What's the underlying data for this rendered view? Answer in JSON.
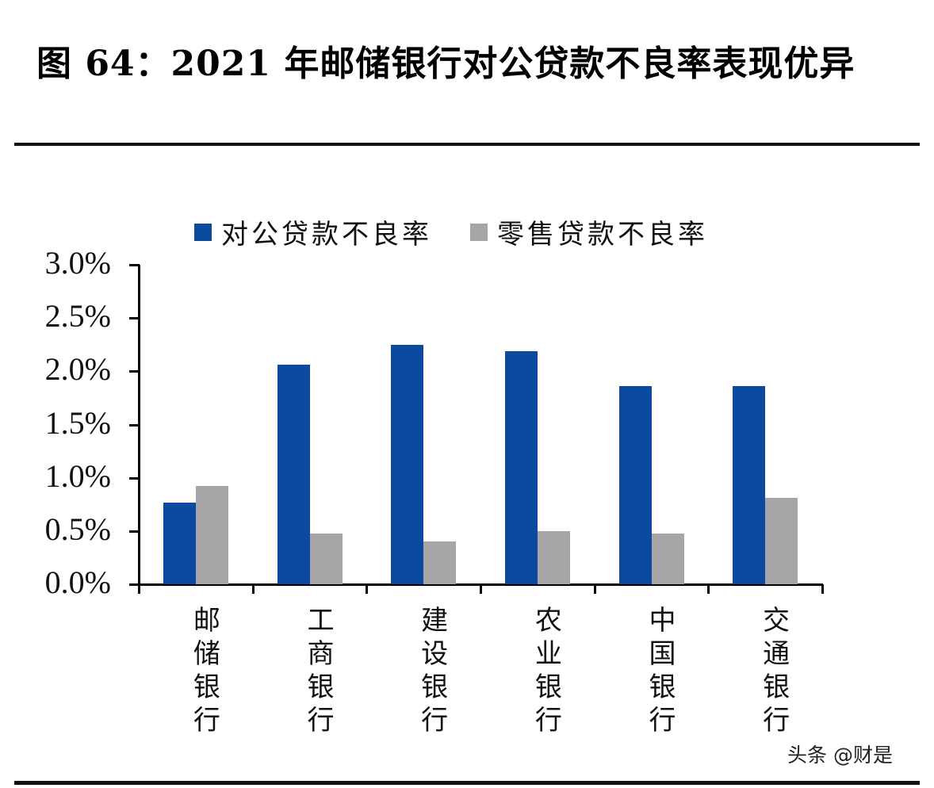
{
  "title": "图 64：2021 年邮储银行对公贷款不良率表现优异",
  "legend": [
    {
      "label": "对公贷款不良率",
      "color": "#0b4a9e"
    },
    {
      "label": "零售贷款不良率",
      "color": "#a6a6a8"
    }
  ],
  "watermark": "头条 @财是",
  "chart_data": {
    "type": "bar",
    "title": "2021 年邮储银行对公贷款不良率表现优异",
    "figure_label": "图 64",
    "categories": [
      "邮储银行",
      "工商银行",
      "建设银行",
      "农业银行",
      "中国银行",
      "交通银行"
    ],
    "series": [
      {
        "name": "对公贷款不良率",
        "color": "#0b4a9e",
        "values": [
          0.77,
          2.06,
          2.25,
          2.19,
          1.86,
          1.86
        ]
      },
      {
        "name": "零售贷款不良率",
        "color": "#a6a6a8",
        "values": [
          0.92,
          0.48,
          0.4,
          0.5,
          0.48,
          0.81
        ]
      }
    ],
    "xlabel": "",
    "ylabel": "",
    "ylim": [
      0,
      3.0
    ],
    "yticks": [
      "0.0%",
      "0.5%",
      "1.0%",
      "1.5%",
      "2.0%",
      "2.5%",
      "3.0%"
    ],
    "unit": "%",
    "grid": false,
    "legend_position": "top"
  }
}
